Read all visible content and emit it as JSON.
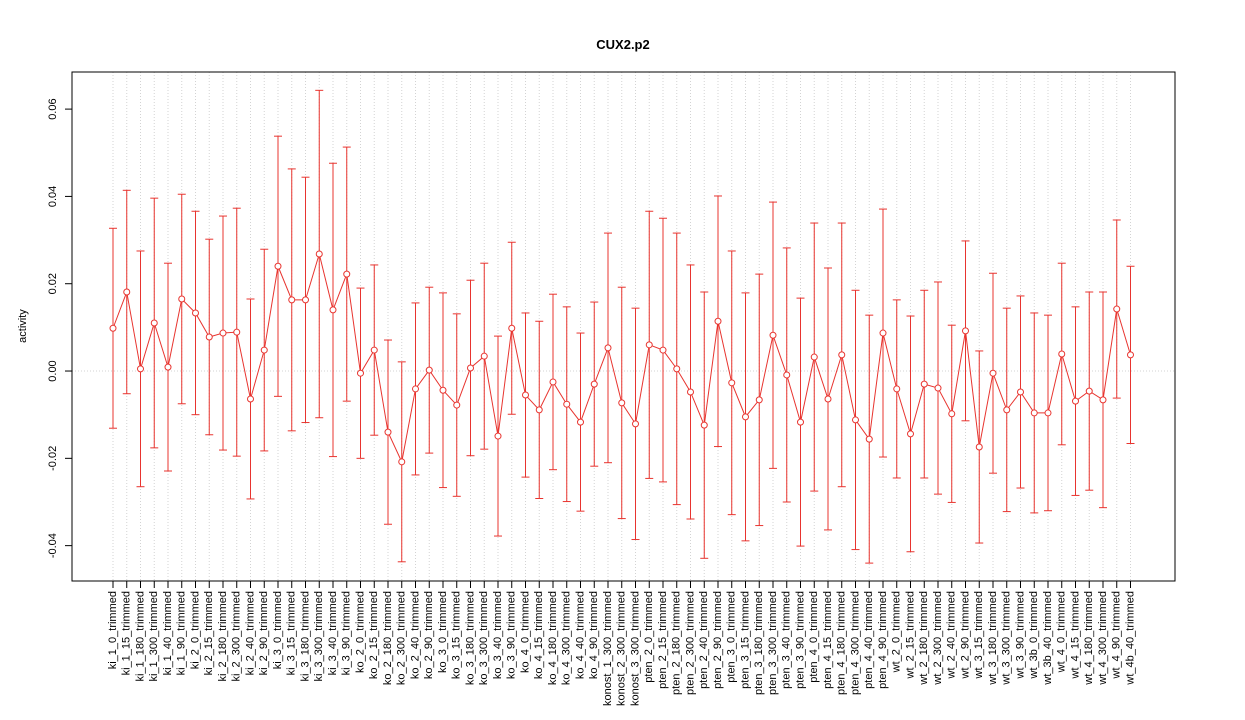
{
  "chart_data": {
    "type": "errorbar",
    "title": "CUX2.p2",
    "y_label": "activity",
    "categories": [
      "ki_1_0_trimmed",
      "ki_1_15_trimmed",
      "ki_1_180_trimmed",
      "ki_1_300_trimmed",
      "ki_1_40_trimmed",
      "ki_1_90_trimmed",
      "ki_2_0_trimmed",
      "ki_2_15_trimmed",
      "ki_2_180_trimmed",
      "ki_2_300_trimmed",
      "ki_2_40_trimmed",
      "ki_2_90_trimmed",
      "ki_3_0_trimmed",
      "ki_3_15_trimmed",
      "ki_3_180_trimmed",
      "ki_3_300_trimmed",
      "ki_3_40_trimmed",
      "ki_3_90_trimmed",
      "ko_2_0_trimmed",
      "ko_2_15_trimmed",
      "ko_2_180_trimmed",
      "ko_2_300_trimmed",
      "ko_2_40_trimmed",
      "ko_2_90_trimmed",
      "ko_3_0_trimmed",
      "ko_3_15_trimmed",
      "ko_3_180_trimmed",
      "ko_3_300_trimmed",
      "ko_3_40_trimmed",
      "ko_3_90_trimmed",
      "ko_4_0_trimmed",
      "ko_4_15_trimmed",
      "ko_4_180_trimmed",
      "ko_4_300_trimmed",
      "ko_4_40_trimmed",
      "ko_4_90_trimmed",
      "konost_1_300_trimmed",
      "konost_2_300_trimmed",
      "konost_3_300_trimmed",
      "pten_2_0_trimmed",
      "pten_2_15_trimmed",
      "pten_2_180_trimmed",
      "pten_2_300_trimmed",
      "pten_2_40_trimmed",
      "pten_2_90_trimmed",
      "pten_3_0_trimmed",
      "pten_3_15_trimmed",
      "pten_3_180_trimmed",
      "pten_3_300_trimmed",
      "pten_3_40_trimmed",
      "pten_3_90_trimmed",
      "pten_4_0_trimmed",
      "pten_4_15_trimmed",
      "pten_4_180_trimmed",
      "pten_4_300_trimmed",
      "pten_4_40_trimmed",
      "pten_4_90_trimmed",
      "wt_2_0_trimmed",
      "wt_2_15_trimmed",
      "wt_2_180_trimmed",
      "wt_2_300_trimmed",
      "wt_2_40_trimmed",
      "wt_2_90_trimmed",
      "wt_3_15_trimmed",
      "wt_3_180_trimmed",
      "wt_3_300_trimmed",
      "wt_3_90_trimmed",
      "wt_3b_0_trimmed",
      "wt_3b_40_trimmed",
      "wt_4_0_trimmed",
      "wt_4_15_trimmed",
      "wt_4_180_trimmed",
      "wt_4_300_trimmed",
      "wt_4_90_trimmed",
      "wt_4b_40_trimmed"
    ],
    "values": [
      0.0098,
      0.0181,
      0.0005,
      0.011,
      0.0009,
      0.0165,
      0.0133,
      0.0078,
      0.0087,
      0.0089,
      -0.0064,
      0.0048,
      0.024,
      0.0163,
      0.0163,
      0.0268,
      0.014,
      0.0222,
      -0.0005,
      0.0048,
      -0.014,
      -0.0208,
      -0.0041,
      0.0002,
      -0.0044,
      -0.0078,
      0.0007,
      0.0034,
      -0.0149,
      0.0098,
      -0.0055,
      -0.0089,
      -0.0025,
      -0.0076,
      -0.0117,
      -0.003,
      0.0053,
      -0.0073,
      -0.0121,
      0.006,
      0.0048,
      0.0005,
      -0.0048,
      -0.0124,
      0.0114,
      -0.0027,
      -0.0105,
      -0.0066,
      0.0082,
      -0.0009,
      -0.0117,
      0.0032,
      -0.0064,
      0.0037,
      -0.0112,
      -0.0156,
      0.0087,
      -0.0041,
      -0.0144,
      -0.003,
      -0.0039,
      -0.0098,
      0.0092,
      -0.0174,
      -0.0005,
      -0.0089,
      -0.0048,
      -0.0096,
      -0.0096,
      0.0039,
      -0.0069,
      -0.0046,
      -0.0066,
      0.0142,
      0.0037
    ],
    "errors": [
      0.0229,
      0.0233,
      0.027,
      0.0286,
      0.0238,
      0.024,
      0.0233,
      0.0224,
      0.0268,
      0.0284,
      0.0229,
      0.0231,
      0.0298,
      0.03,
      0.0281,
      0.0375,
      0.0336,
      0.0291,
      0.0195,
      0.0195,
      0.0211,
      0.0229,
      0.0197,
      0.019,
      0.0223,
      0.0209,
      0.0201,
      0.0213,
      0.0229,
      0.0197,
      0.0188,
      0.0203,
      0.0201,
      0.0223,
      0.0204,
      0.0188,
      0.0263,
      0.0265,
      0.0265,
      0.0306,
      0.0302,
      0.0311,
      0.0291,
      0.0305,
      0.0287,
      0.0302,
      0.0284,
      0.0288,
      0.0305,
      0.0291,
      0.0284,
      0.0307,
      0.03,
      0.0302,
      0.0297,
      0.0284,
      0.0284,
      0.0204,
      0.027,
      0.0215,
      0.0243,
      0.0203,
      0.0206,
      0.022,
      0.0229,
      0.0233,
      0.022,
      0.0229,
      0.0224,
      0.0208,
      0.0216,
      0.0227,
      0.0247,
      0.0204,
      0.0203
    ],
    "color": "#e8342f",
    "ylim": [
      -0.0481,
      0.0685
    ],
    "yticks": [
      -0.04,
      -0.02,
      {
        "value": 0,
        "label": "0.00"
      },
      0.02,
      0.04,
      0.06
    ],
    "reference_line": 0,
    "grid": true
  }
}
